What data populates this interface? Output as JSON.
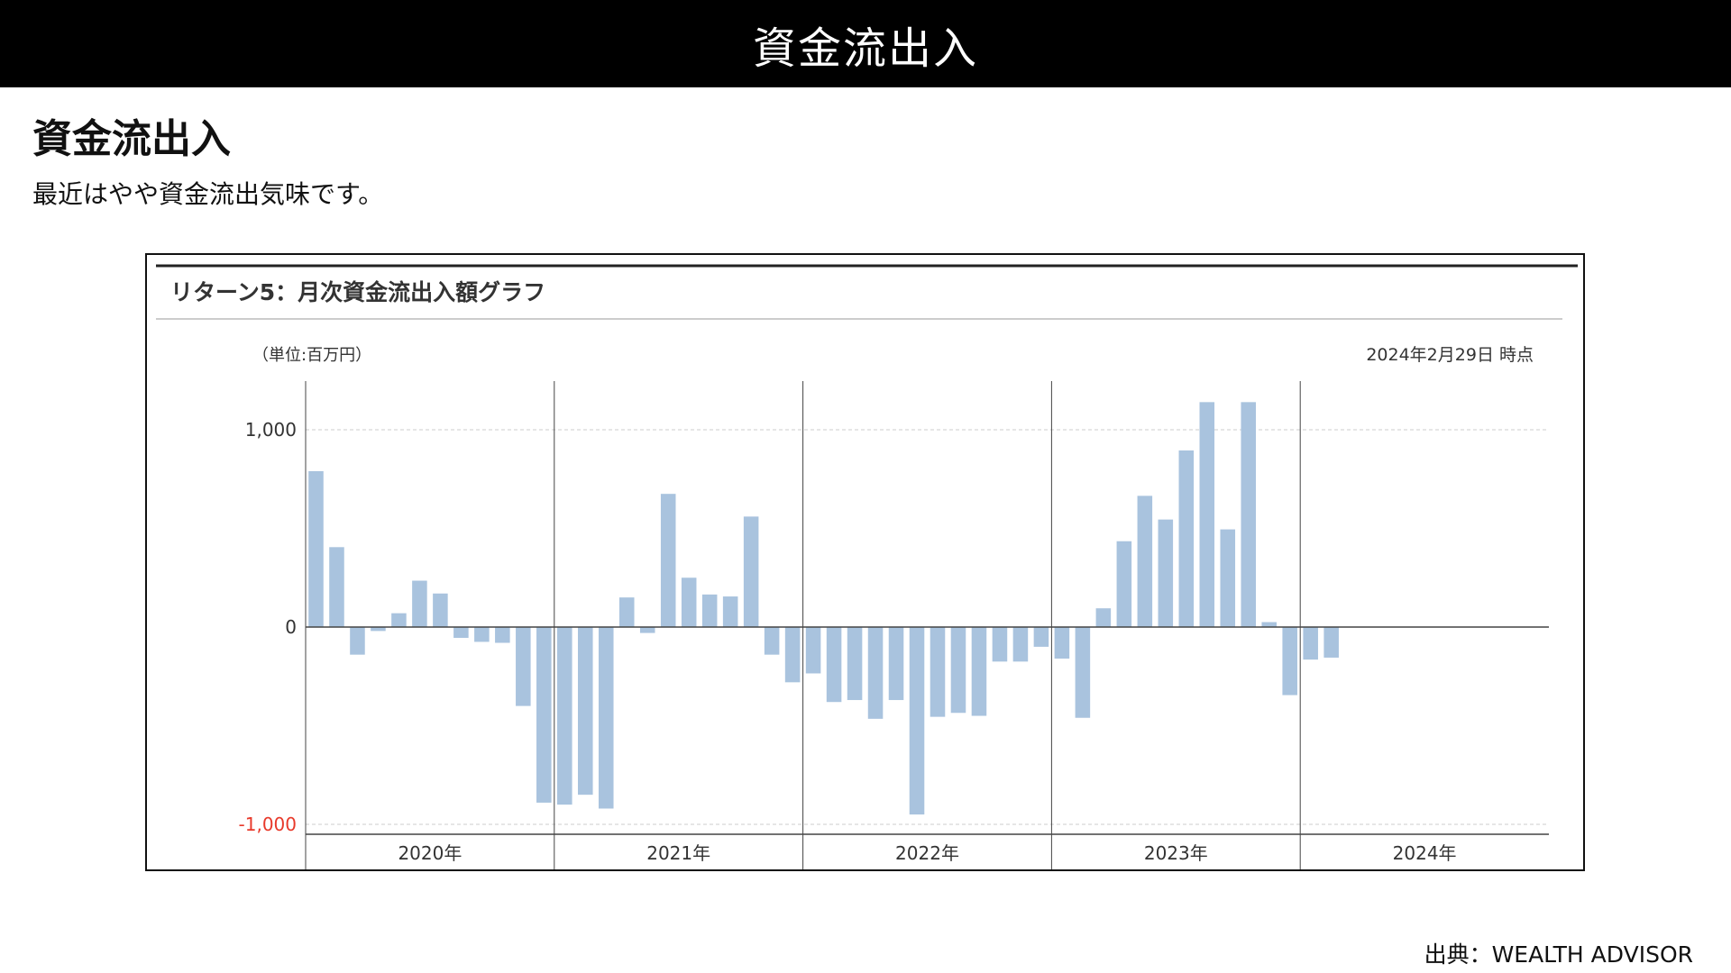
{
  "header": {
    "title": "資金流出入"
  },
  "section": {
    "heading": "資金流出入",
    "description": "最近はやや資金流出気味です。"
  },
  "chart_panel": {
    "title": "リターン5：月次資金流出入額グラフ",
    "unit_label": "（単位:百万円）",
    "as_of": "2024年2月29日 時点"
  },
  "source": "出典：WEALTH ADVISOR",
  "colors": {
    "bar": "#a9c3de",
    "negative_tick": "#e8392a",
    "axis": "#444444",
    "gridline": "#cccccc"
  },
  "chart_data": {
    "type": "bar",
    "title": "リターン5：月次資金流出入額グラフ",
    "ylabel": "（単位:百万円）",
    "xlabel": "",
    "ylim": [
      -1050,
      1260
    ],
    "yticks": [
      1000,
      0,
      -1000
    ],
    "ytick_labels": [
      "1,000",
      "0",
      "-1,000"
    ],
    "grid": "dashed horizontal at ±1,000",
    "years": [
      "2020年",
      "2021年",
      "2022年",
      "2023年",
      "2024年"
    ],
    "months_per_year": 12,
    "values": [
      790,
      405,
      -140,
      -20,
      70,
      235,
      170,
      -55,
      -75,
      -80,
      -400,
      -890,
      -900,
      -850,
      -920,
      150,
      -30,
      675,
      250,
      165,
      155,
      560,
      -140,
      -280,
      -235,
      -380,
      -370,
      -465,
      -370,
      -950,
      -455,
      -435,
      -450,
      -175,
      -175,
      -100,
      -160,
      -460,
      95,
      435,
      665,
      545,
      895,
      1140,
      495,
      1140,
      25,
      -345,
      -165,
      -155
    ]
  }
}
